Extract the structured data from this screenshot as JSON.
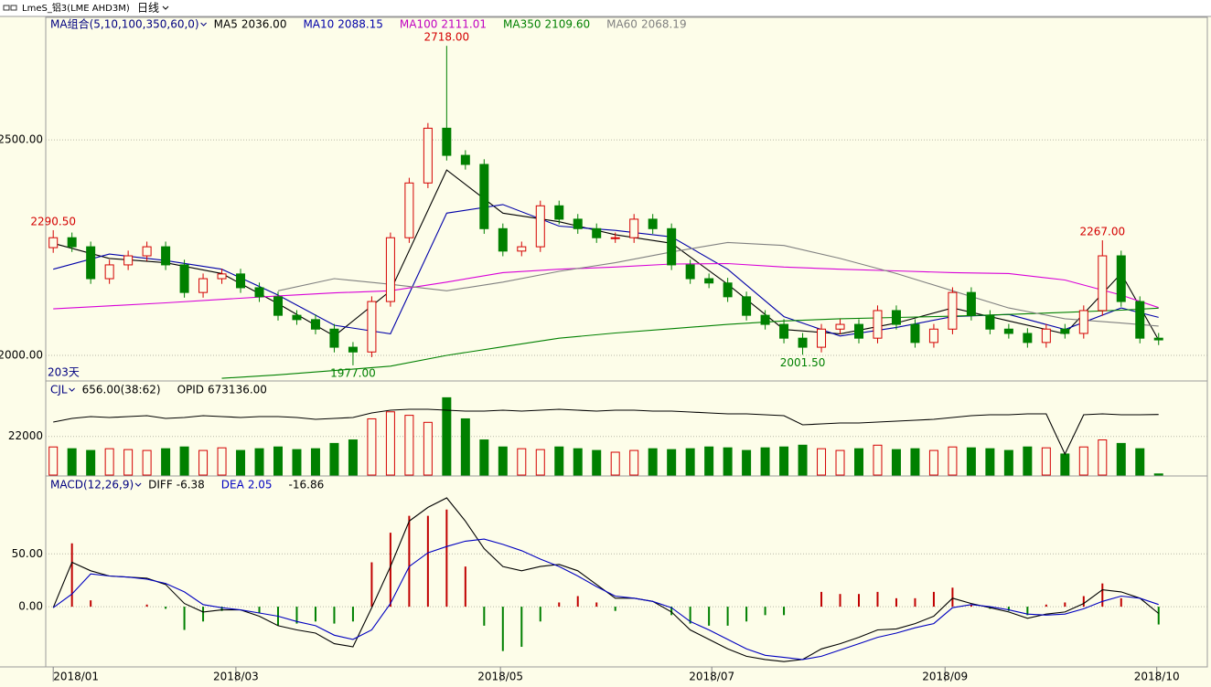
{
  "header": {
    "symbol": "LmeS_铝3(LME AHD3M)",
    "period": "日线"
  },
  "chart_data": [
    {
      "type": "candlestick",
      "title": "MA组合(5,10,100,350,60,0)",
      "days_label": "203天",
      "up_color": "#d40000",
      "down_color": "#008000",
      "grid": true,
      "open": [
        2250,
        2273,
        2252,
        2178,
        2210,
        2231,
        2252,
        2210,
        2146,
        2178,
        2189,
        2157,
        2136,
        2093,
        2083,
        2061,
        2019,
        2008,
        2125,
        2273,
        2400,
        2527,
        2464,
        2443,
        2294,
        2242,
        2252,
        2347,
        2316,
        2294,
        2273,
        2273,
        2316,
        2294,
        2210,
        2178,
        2168,
        2136,
        2093,
        2072,
        2040,
        2019,
        2061,
        2072,
        2040,
        2104,
        2072,
        2030,
        2061,
        2146,
        2093,
        2061,
        2051,
        2030,
        2061,
        2051,
        2104,
        2231,
        2125,
        2040
      ],
      "high": [
        2290.5,
        2285,
        2264,
        2222,
        2243,
        2264,
        2264,
        2222,
        2190,
        2201,
        2201,
        2169,
        2148,
        2105,
        2095,
        2073,
        2031,
        2137,
        2285,
        2412,
        2539,
        2718,
        2476,
        2455,
        2306,
        2264,
        2359,
        2359,
        2328,
        2306,
        2285,
        2328,
        2328,
        2306,
        2222,
        2190,
        2180,
        2148,
        2105,
        2084,
        2052,
        2073,
        2084,
        2084,
        2116,
        2116,
        2084,
        2073,
        2158,
        2158,
        2105,
        2073,
        2063,
        2073,
        2073,
        2116,
        2267,
        2243,
        2137,
        2052
      ],
      "low": [
        2238,
        2240,
        2166,
        2166,
        2198,
        2219,
        2198,
        2134,
        2134,
        2166,
        2145,
        2124,
        2081,
        2071,
        2049,
        2007,
        1977,
        1996,
        2113,
        2261,
        2388,
        2452,
        2431,
        2282,
        2230,
        2230,
        2240,
        2304,
        2282,
        2261,
        2261,
        2261,
        2282,
        2198,
        2166,
        2156,
        2124,
        2081,
        2060,
        2028,
        2001.5,
        2007,
        2049,
        2028,
        2028,
        2060,
        2018,
        2018,
        2049,
        2081,
        2049,
        2039,
        2018,
        2018,
        2039,
        2039,
        2092,
        2113,
        2028,
        2024
      ],
      "close": [
        2273,
        2252,
        2178,
        2210,
        2231,
        2252,
        2210,
        2146,
        2178,
        2189,
        2157,
        2136,
        2093,
        2083,
        2061,
        2019,
        2008,
        2125,
        2273,
        2400,
        2527,
        2464,
        2443,
        2294,
        2242,
        2252,
        2347,
        2316,
        2294,
        2273,
        2273,
        2316,
        2294,
        2210,
        2178,
        2168,
        2136,
        2093,
        2072,
        2040,
        2019,
        2061,
        2072,
        2040,
        2104,
        2072,
        2030,
        2061,
        2146,
        2093,
        2061,
        2051,
        2030,
        2061,
        2051,
        2104,
        2231,
        2125,
        2040,
        2036
      ],
      "ylim": [
        1945,
        2782
      ],
      "yticks": [
        {
          "value": 2000,
          "label": "2000.00"
        },
        {
          "value": 2500,
          "label": "2500.00"
        }
      ],
      "xlim": [
        -0.4,
        61.6
      ],
      "xticks": [
        {
          "value": 0,
          "label": "2018/01"
        },
        {
          "value": 9.75,
          "label": "2018/03"
        },
        {
          "value": 23.87,
          "label": "2018/05"
        },
        {
          "value": 35.15,
          "label": "2018/07"
        },
        {
          "value": 47.6,
          "label": "2018/09"
        },
        {
          "value": 58.9,
          "label": "2018/10"
        }
      ],
      "high_labels": [
        {
          "value": 2290.5,
          "label": "2290.50"
        },
        {
          "value": 2718,
          "label": "2718.00"
        },
        {
          "value": 2267,
          "label": "2267.00"
        }
      ],
      "low_labels": [
        {
          "value": 1977,
          "label": "1977.00"
        },
        {
          "value": 2001.5,
          "label": "2001.50"
        }
      ],
      "lines": [
        {
          "name": "MA5",
          "color": "#000000",
          "latest": {
            "value": 2036,
            "label": "2036.00"
          },
          "x": [
            0,
            3,
            6,
            9,
            12,
            15,
            18,
            21,
            24,
            27,
            30,
            33,
            36,
            39,
            42,
            45,
            48,
            51,
            54,
            57,
            59
          ],
          "values": [
            2260,
            2225,
            2215,
            2190,
            2120,
            2045,
            2150,
            2430,
            2330,
            2310,
            2280,
            2260,
            2165,
            2060,
            2050,
            2075,
            2110,
            2080,
            2050,
            2190,
            2036
          ]
        },
        {
          "name": "MA10",
          "color": "#0000a8",
          "latest": 2088.15,
          "x": [
            0,
            3,
            6,
            9,
            12,
            15,
            18,
            21,
            24,
            27,
            30,
            33,
            36,
            39,
            42,
            45,
            48,
            51,
            54,
            57,
            59
          ],
          "values": [
            2200,
            2235,
            2220,
            2200,
            2140,
            2070,
            2050,
            2330,
            2350,
            2300,
            2290,
            2275,
            2200,
            2090,
            2045,
            2065,
            2090,
            2095,
            2060,
            2110,
            2088.15
          ]
        },
        {
          "name": "MA100",
          "color": "#d800d8",
          "latest": 2111.01,
          "x": [
            0,
            3,
            6,
            9,
            12,
            15,
            18,
            21,
            24,
            27,
            30,
            33,
            36,
            39,
            42,
            45,
            48,
            51,
            54,
            57,
            59
          ],
          "values": [
            2108,
            2115,
            2122,
            2130,
            2138,
            2145,
            2150,
            2170,
            2192,
            2200,
            2205,
            2212,
            2213,
            2205,
            2200,
            2196,
            2192,
            2190,
            2175,
            2140,
            2111.01
          ]
        },
        {
          "name": "MA350",
          "color": "#008000",
          "latest": {
            "value": 2109.6,
            "label": "2109.60"
          },
          "x": [
            0,
            3,
            6,
            9,
            12,
            15,
            18,
            21,
            24,
            27,
            30,
            33,
            36,
            39,
            42,
            45,
            48,
            51,
            54,
            57,
            59
          ],
          "values": [
            null,
            null,
            null,
            1947,
            1955,
            1965,
            1975,
            2000,
            2020,
            2040,
            2052,
            2062,
            2072,
            2080,
            2085,
            2088,
            2091,
            2095,
            2100,
            2105,
            2109.6
          ]
        },
        {
          "name": "MA60",
          "color": "#808080",
          "latest": 2068.19,
          "x": [
            0,
            3,
            6,
            9,
            12,
            15,
            18,
            21,
            24,
            27,
            30,
            33,
            36,
            39,
            42,
            45,
            48,
            51,
            54,
            57,
            59
          ],
          "values": [
            null,
            null,
            null,
            null,
            2150,
            2178,
            2165,
            2150,
            2170,
            2195,
            2215,
            2240,
            2262,
            2255,
            2225,
            2190,
            2150,
            2110,
            2085,
            2075,
            2068.19
          ]
        }
      ]
    },
    {
      "type": "bar",
      "title": "CJL",
      "ratio": "(38:62)",
      "latest": {
        "value": 656,
        "label": "656.00"
      },
      "values": [
        16000,
        15000,
        14000,
        15000,
        14500,
        14000,
        15000,
        16000,
        14000,
        15500,
        14000,
        15000,
        16000,
        14500,
        15000,
        18000,
        20000,
        32000,
        36000,
        34000,
        30000,
        44000,
        32000,
        20000,
        16000,
        15000,
        14500,
        16000,
        15000,
        14000,
        13000,
        14000,
        15000,
        14500,
        15000,
        16000,
        15500,
        14000,
        15500,
        16000,
        17000,
        15000,
        14000,
        15000,
        17000,
        14500,
        15000,
        14000,
        16000,
        15500,
        15000,
        14000,
        16000,
        15500,
        12000,
        16000,
        20000,
        18000,
        15000,
        656
      ],
      "ylim": [
        0,
        52000
      ],
      "yticks": [
        22000
      ],
      "grid": true,
      "y2lim": [
        640000,
        690000
      ],
      "series": [
        {
          "name": "OPID",
          "axis": "y2",
          "color": "#000000",
          "latest": {
            "value": 673136,
            "label": "673136.00"
          },
          "values": [
            669000,
            671000,
            672000,
            671500,
            672000,
            672500,
            671000,
            671500,
            672500,
            672000,
            671500,
            672000,
            672000,
            671500,
            670500,
            671000,
            671500,
            674000,
            675500,
            676000,
            676000,
            675500,
            675000,
            675000,
            675500,
            675000,
            675500,
            676000,
            675500,
            675000,
            675500,
            675500,
            675000,
            675000,
            674500,
            674000,
            673500,
            673500,
            673000,
            672500,
            667500,
            668000,
            668500,
            668500,
            669000,
            669500,
            670000,
            670500,
            671500,
            672500,
            673000,
            673000,
            673500,
            673500,
            651500,
            673000,
            673500,
            673000,
            673000,
            673136
          ]
        }
      ]
    },
    {
      "type": "macd",
      "title": "MACD(12,26,9)",
      "ylim": [
        -57,
        122
      ],
      "yticks": [
        {
          "value": 50,
          "label": "50.00"
        },
        {
          "value": 0,
          "label": "0.00"
        }
      ],
      "grid": true,
      "histogram": {
        "latest": -16.86,
        "up_color": "#c00000",
        "down_color": "#008000",
        "values": [
          0,
          60,
          6,
          0,
          0,
          2,
          -2,
          -22,
          -14,
          -4,
          0,
          -6,
          -18,
          -16,
          -14,
          -16,
          -14,
          42,
          70,
          86,
          86,
          92,
          38,
          -18,
          -42,
          -38,
          -14,
          4,
          10,
          4,
          -4,
          0,
          0,
          -8,
          -16,
          -18,
          -18,
          -14,
          -8,
          -8,
          0,
          14,
          12,
          12,
          14,
          8,
          8,
          14,
          18,
          2,
          -2,
          -4,
          -8,
          2,
          4,
          10,
          22,
          8,
          0,
          -16.86
        ]
      },
      "series": [
        {
          "name": "DIFF",
          "color": "#000000",
          "latest": -6.38,
          "values": [
            -1,
            42,
            34,
            29,
            28,
            27,
            21,
            3,
            -5,
            -3,
            -3,
            -9,
            -18,
            -22,
            -25,
            -35,
            -38,
            -1,
            38,
            81,
            94,
            103,
            81,
            55,
            38,
            34,
            38,
            40,
            34,
            21,
            8,
            8,
            5,
            -5,
            -22,
            -31,
            -40,
            -47,
            -50,
            -52,
            -50,
            -40,
            -35,
            -29,
            -22,
            -21,
            -16,
            -9,
            8,
            3,
            -1,
            -5,
            -11,
            -7,
            -5,
            3,
            16,
            14,
            8,
            -6.38
          ]
        },
        {
          "name": "DEA",
          "color": "#0000c0",
          "latest": 2.05,
          "values": [
            -1,
            12,
            31,
            29,
            28,
            26,
            22,
            14,
            2,
            -1,
            -3,
            -6,
            -9,
            -14,
            -18,
            -27,
            -31,
            -22,
            3,
            38,
            51,
            57,
            62,
            64,
            59,
            53,
            45,
            38,
            29,
            19,
            10,
            8,
            5,
            -1,
            -14,
            -22,
            -31,
            -40,
            -46,
            -48,
            -50,
            -47,
            -41,
            -35,
            -29,
            -25,
            -20,
            -16,
            -1,
            2,
            0,
            -3,
            -7,
            -8,
            -7,
            -2,
            5,
            10,
            8,
            2.05
          ]
        }
      ]
    }
  ]
}
